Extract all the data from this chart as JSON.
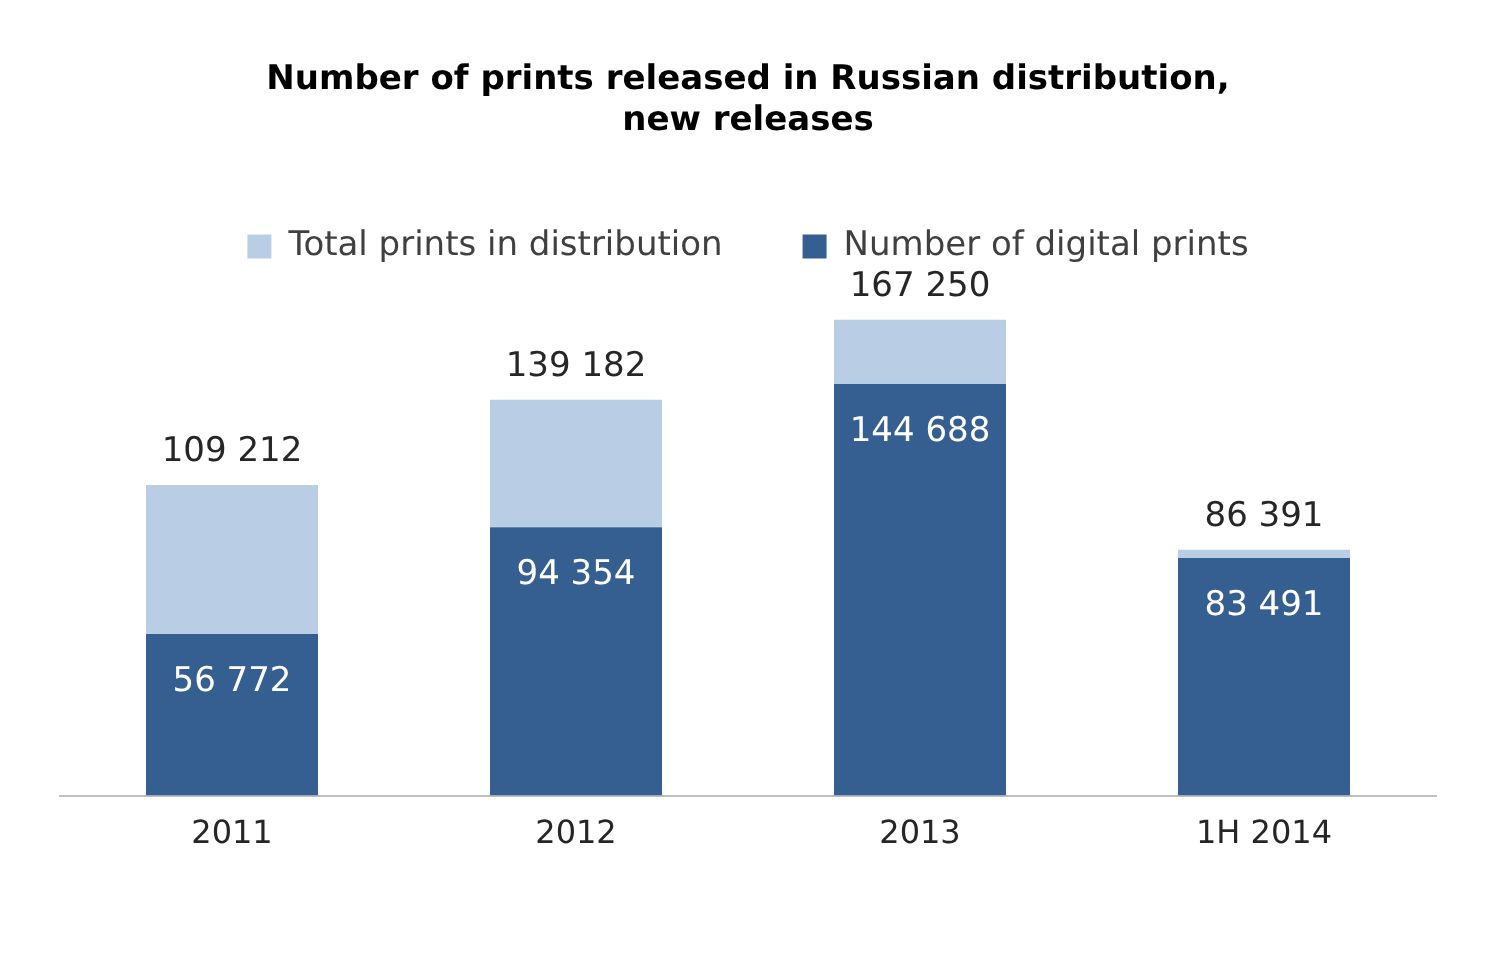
{
  "chart_data": {
    "type": "bar",
    "title": "Number of prints released in Russian distribution,\nnew releases",
    "categories": [
      "2011",
      "2012",
      "2013",
      "1H 2014"
    ],
    "stacked": true,
    "legend": "top",
    "tick_labels": "x",
    "grid": false,
    "series": [
      {
        "name": "Number of digital prints",
        "color": "#365f91",
        "values": [
          56772,
          94354,
          144688,
          83491
        ],
        "value_labels": [
          "56 772",
          "94 354",
          "144 688",
          "83 491"
        ]
      },
      {
        "name": "Total prints in distribution",
        "color": "#b9cde5",
        "values": [
          52440,
          44828,
          22562,
          2900
        ]
      }
    ],
    "totals": [
      "109 212",
      "139 182",
      "167 250",
      "86 391"
    ]
  }
}
